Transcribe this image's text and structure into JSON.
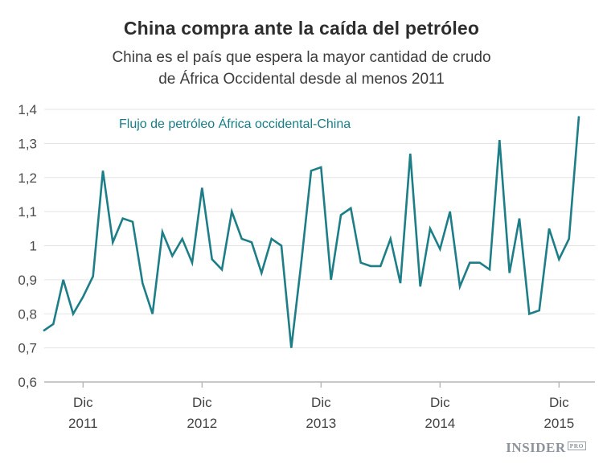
{
  "header": {
    "title": "China compra ante la caída del petróleo",
    "subtitle_line1": "China es el país que espera la mayor cantidad de crudo",
    "subtitle_line2": "de África Occidental desde al menos 2011"
  },
  "legend": {
    "label": "Flujo de petróleo África occidental-China"
  },
  "logo": {
    "name": "INSIDER",
    "suffix": "PRO"
  },
  "colors": {
    "line": "#1d7e87",
    "legend_text": "#177d86",
    "grid": "#e3e3e3",
    "baseline": "#b5b5b5",
    "tick": "#b5b5b5",
    "axis_text": "#4c4c4c",
    "title_text": "#2d2d2d"
  },
  "chart_data": {
    "type": "line",
    "title": "China compra ante la caída del petróleo",
    "subtitle": "China es el país que espera la mayor cantidad de crudo de África Occidental desde al menos 2011",
    "series_name": "Flujo de petróleo África occidental-China",
    "x_start": "2011-08",
    "x_end": "2016-02",
    "x_frequency": "monthly",
    "values": [
      0.75,
      0.77,
      0.9,
      0.8,
      0.85,
      0.91,
      1.22,
      1.01,
      1.08,
      1.07,
      0.89,
      0.8,
      1.04,
      0.97,
      1.02,
      0.95,
      1.17,
      0.96,
      0.93,
      1.1,
      1.02,
      1.01,
      0.92,
      1.02,
      1.0,
      0.7,
      0.95,
      1.22,
      1.23,
      0.9,
      1.09,
      1.11,
      0.95,
      0.94,
      0.94,
      1.02,
      0.89,
      1.27,
      0.88,
      1.05,
      0.99,
      1.1,
      0.88,
      0.95,
      0.95,
      0.93,
      1.31,
      0.92,
      1.08,
      0.8,
      0.81,
      1.05,
      0.96,
      1.02,
      1.38
    ],
    "ylim": [
      0.6,
      1.4
    ],
    "y_tick_values": [
      1.4,
      1.3,
      1.2,
      1.1,
      1.0,
      0.9,
      0.8,
      0.7,
      0.6
    ],
    "y_tick_labels": [
      "1,4",
      "1,3",
      "1,2",
      "1,1",
      "1",
      "0,9",
      "0,8",
      "0,7",
      "0,6"
    ],
    "x_ticks": [
      {
        "index": 4,
        "line1": "Dic",
        "line2": "2011"
      },
      {
        "index": 16,
        "line1": "Dic",
        "line2": "2012"
      },
      {
        "index": 28,
        "line1": "Dic",
        "line2": "2013"
      },
      {
        "index": 40,
        "line1": "Dic",
        "line2": "2014"
      },
      {
        "index": 52,
        "line1": "Dic",
        "line2": "2015"
      }
    ],
    "grid": "horizontal",
    "legend_position": "top-left-inside"
  }
}
